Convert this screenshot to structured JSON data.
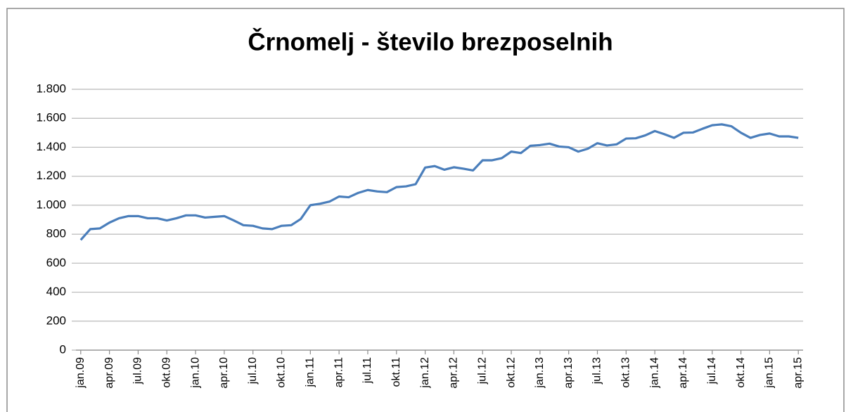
{
  "chart_data": {
    "type": "line",
    "title": "Črnomelj - število brezposelnih",
    "categories": [
      "jan.09",
      null,
      null,
      "apr.09",
      null,
      null,
      "jul.09",
      null,
      null,
      "okt.09",
      null,
      null,
      "jan.10",
      null,
      null,
      "apr.10",
      null,
      null,
      "jul.10",
      null,
      null,
      "okt.10",
      null,
      null,
      "jan.11",
      null,
      null,
      "apr.11",
      null,
      null,
      "jul.11",
      null,
      null,
      "okt.11",
      null,
      null,
      "jan.12",
      null,
      null,
      "apr.12",
      null,
      null,
      "jul.12",
      null,
      null,
      "okt.12",
      null,
      null,
      "jan.13",
      null,
      null,
      "apr.13",
      null,
      null,
      "jul.13",
      null,
      null,
      "okt.13",
      null,
      null,
      "jan.14",
      null,
      null,
      "apr.14",
      null,
      null,
      "jul.14",
      null,
      null,
      "okt.14",
      null,
      null,
      "jan.15",
      null,
      null,
      "apr.15"
    ],
    "values": [
      760,
      835,
      840,
      880,
      910,
      925,
      925,
      910,
      910,
      895,
      910,
      930,
      930,
      915,
      920,
      925,
      895,
      862,
      858,
      840,
      835,
      858,
      862,
      905,
      1000,
      1010,
      1025,
      1060,
      1055,
      1085,
      1105,
      1095,
      1090,
      1125,
      1130,
      1145,
      1260,
      1270,
      1245,
      1262,
      1252,
      1240,
      1310,
      1310,
      1325,
      1370,
      1360,
      1410,
      1415,
      1425,
      1405,
      1400,
      1370,
      1390,
      1428,
      1412,
      1420,
      1460,
      1462,
      1482,
      1512,
      1490,
      1465,
      1500,
      1502,
      1528,
      1552,
      1558,
      1545,
      1500,
      1465,
      1485,
      1495,
      1475,
      1475,
      1465
    ],
    "color": "#4a7ebb",
    "ylim": [
      0,
      1800
    ],
    "yticks": [
      0,
      200,
      400,
      600,
      800,
      {
        "value": 1000,
        "label": "1.000"
      },
      {
        "value": 1200,
        "label": "1.200"
      },
      {
        "value": 1400,
        "label": "1.400"
      },
      {
        "value": 1600,
        "label": "1.600"
      },
      {
        "value": 1800,
        "label": "1.800"
      }
    ],
    "grid": true
  }
}
